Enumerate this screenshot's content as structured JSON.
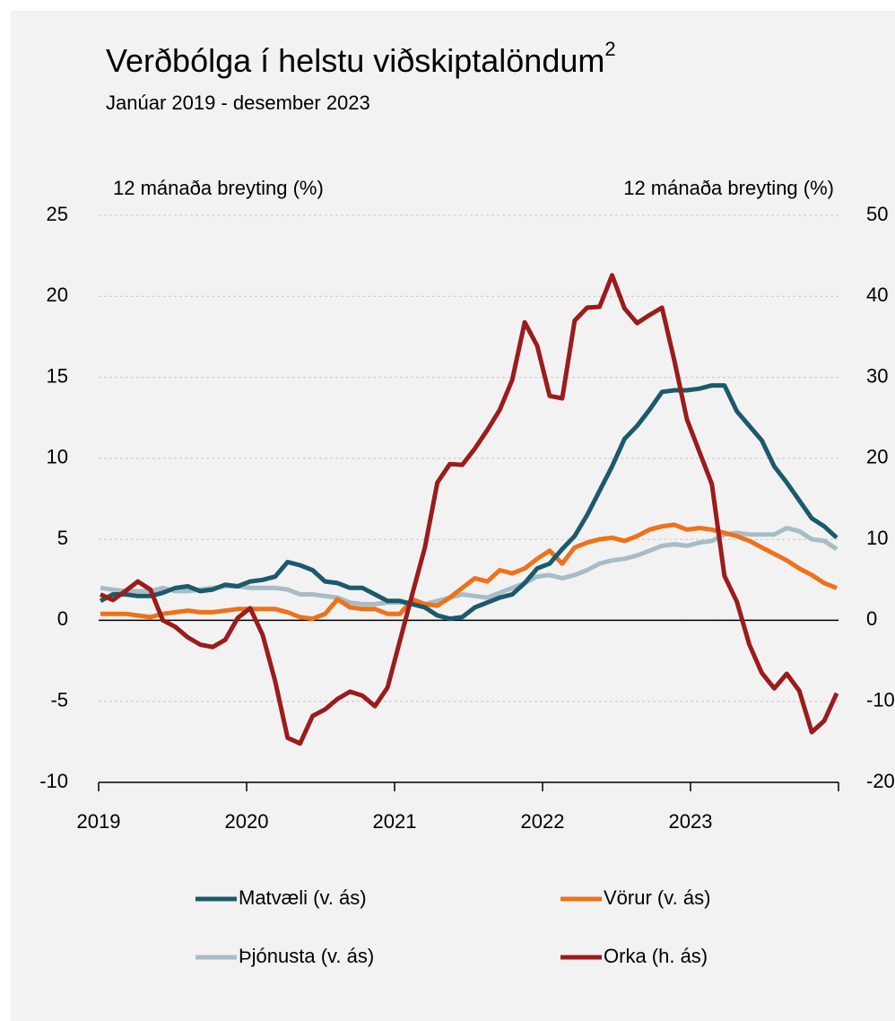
{
  "chart_data": {
    "type": "line",
    "title": "Verðbólga í helstu viðskiptalöndum",
    "title_superscript": "2",
    "subtitle": "Janúar 2019 - desember 2023",
    "ylabel": "12 mánaða breyting (%)",
    "y2label": "12 mánaða breyting (%)",
    "categories": [
      "2019",
      null,
      null,
      null,
      null,
      null,
      null,
      null,
      null,
      null,
      null,
      null,
      "2020",
      null,
      null,
      null,
      null,
      null,
      null,
      null,
      null,
      null,
      null,
      null,
      "2021",
      null,
      null,
      null,
      null,
      null,
      null,
      null,
      null,
      null,
      null,
      null,
      "2022",
      null,
      null,
      null,
      null,
      null,
      null,
      null,
      null,
      null,
      null,
      null,
      "2023",
      null,
      null,
      null,
      null,
      null,
      null,
      null,
      null,
      null,
      null,
      null
    ],
    "ylim": [
      -10,
      25
    ],
    "yticks": [
      -10,
      -5,
      0,
      5,
      10,
      15,
      20,
      25
    ],
    "y2lim": [
      -20,
      50
    ],
    "y2ticks": [
      -20,
      -10,
      0,
      10,
      20,
      30,
      40,
      50
    ],
    "grid": true,
    "series": [
      {
        "name": "Matvæli (v. ás)",
        "color": "#1b5a6c",
        "values": [
          1.2,
          1.6,
          1.6,
          1.5,
          1.5,
          1.7,
          2.0,
          2.1,
          1.8,
          1.9,
          2.2,
          2.1,
          2.4,
          2.5,
          2.7,
          3.6,
          3.4,
          3.1,
          2.4,
          2.3,
          2.0,
          2.0,
          1.6,
          1.2,
          1.2,
          1.0,
          0.8,
          0.3,
          0.1,
          0.2,
          0.8,
          1.1,
          1.4,
          1.6,
          2.3,
          3.2,
          3.5,
          4.4,
          5.2,
          6.5,
          8.0,
          9.5,
          11.2,
          12.0,
          13.0,
          14.1,
          14.2,
          14.2,
          14.3,
          14.5,
          14.5,
          12.9,
          12.0,
          11.1,
          9.5,
          8.5,
          7.4,
          6.3,
          5.8,
          5.1
        ]
      },
      {
        "name": "Vörur (v. ás)",
        "color": "#ee7219",
        "values": [
          0.4,
          0.4,
          0.4,
          0.3,
          0.2,
          0.4,
          0.5,
          0.6,
          0.5,
          0.5,
          0.6,
          0.7,
          0.7,
          0.7,
          0.7,
          0.5,
          0.2,
          0.1,
          0.4,
          1.3,
          0.8,
          0.7,
          0.7,
          0.4,
          0.4,
          1.3,
          1.0,
          0.9,
          1.4,
          2.0,
          2.6,
          2.4,
          3.1,
          2.9,
          3.2,
          3.8,
          4.3,
          3.5,
          4.5,
          4.8,
          5.0,
          5.1,
          4.9,
          5.2,
          5.6,
          5.8,
          5.9,
          5.6,
          5.7,
          5.6,
          5.4,
          5.2,
          4.9,
          4.5,
          4.1,
          3.7,
          3.2,
          2.8,
          2.3,
          2.0
        ]
      },
      {
        "name": "Þjónusta (v. ás)",
        "color": "#a8bcc6",
        "values": [
          2.0,
          1.9,
          1.8,
          1.8,
          1.8,
          2.0,
          1.8,
          1.8,
          1.9,
          2.0,
          2.1,
          2.1,
          2.0,
          2.0,
          2.0,
          1.9,
          1.6,
          1.6,
          1.5,
          1.4,
          1.1,
          1.0,
          1.0,
          1.1,
          1.1,
          1.1,
          1.0,
          1.2,
          1.4,
          1.6,
          1.5,
          1.4,
          1.7,
          2.0,
          2.3,
          2.7,
          2.8,
          2.6,
          2.8,
          3.1,
          3.5,
          3.7,
          3.8,
          4.0,
          4.3,
          4.6,
          4.7,
          4.6,
          4.8,
          4.9,
          5.3,
          5.4,
          5.3,
          5.3,
          5.3,
          5.7,
          5.5,
          5.0,
          4.9,
          4.4
        ]
      },
      {
        "name": "Orka (h. ás)",
        "color": "#9b1c1c",
        "axis": "y2",
        "values": [
          3.2,
          2.5,
          3.6,
          4.8,
          3.8,
          0,
          -0.8,
          -2.1,
          -3.0,
          -3.3,
          -2.4,
          0.3,
          1.5,
          -1.8,
          -7.5,
          -14.5,
          -15.2,
          -11.8,
          -11.0,
          -9.7,
          -8.8,
          -9.3,
          -10.6,
          -8.3,
          -2.5,
          3.3,
          9.0,
          17.0,
          19.3,
          19.2,
          21.2,
          23.5,
          26.0,
          29.7,
          36.8,
          33.9,
          27.7,
          27.4,
          37.0,
          38.6,
          38.7,
          42.6,
          38.5,
          36.7,
          37.7,
          38.6,
          32.0,
          24.8,
          20.8,
          16.8,
          5.5,
          2.3,
          -3.0,
          -6.5,
          -8.4,
          -6.6,
          -8.7,
          -13.8,
          -12.4,
          -9.0
        ]
      }
    ]
  }
}
